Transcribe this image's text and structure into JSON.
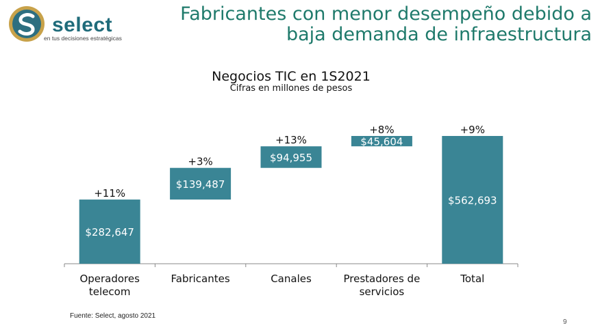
{
  "header": {
    "logo_word": "select",
    "logo_tagline": "en tus decisiones estratégicas",
    "title_line1": "Fabricantes con menor desempeño debido a",
    "title_line2": "baja demanda de infraestructura"
  },
  "colors": {
    "bar": "#3a8595",
    "title": "#1f7a6b",
    "logo_blue": "#1f6b7a",
    "logo_gold": "#c8a24a"
  },
  "chart_data": {
    "type": "bar",
    "subtype": "waterfall",
    "title": "Negocios TIC en 1S2021",
    "subtitle": "Cifras en millones de pesos",
    "categories": [
      [
        "Operadores",
        "telecom"
      ],
      [
        "Fabricantes"
      ],
      [
        "Canales"
      ],
      [
        "Prestadores de",
        "servicios"
      ],
      [
        "Total"
      ]
    ],
    "values": [
      282647,
      139487,
      94955,
      45604,
      562693
    ],
    "value_labels": [
      "$282,647",
      "$139,487",
      "$94,955",
      "$45,604",
      "$562,693"
    ],
    "growth_labels": [
      "+11%",
      "+3%",
      "+13%",
      "+8%",
      "+9%"
    ],
    "is_total": [
      false,
      false,
      false,
      false,
      true
    ],
    "xlabel": "",
    "ylabel": "",
    "ylim": [
      0,
      562693
    ],
    "grid": false,
    "legend": "none"
  },
  "footer": {
    "source": "Fuente: Select, agosto 2021",
    "page_number": "9"
  }
}
